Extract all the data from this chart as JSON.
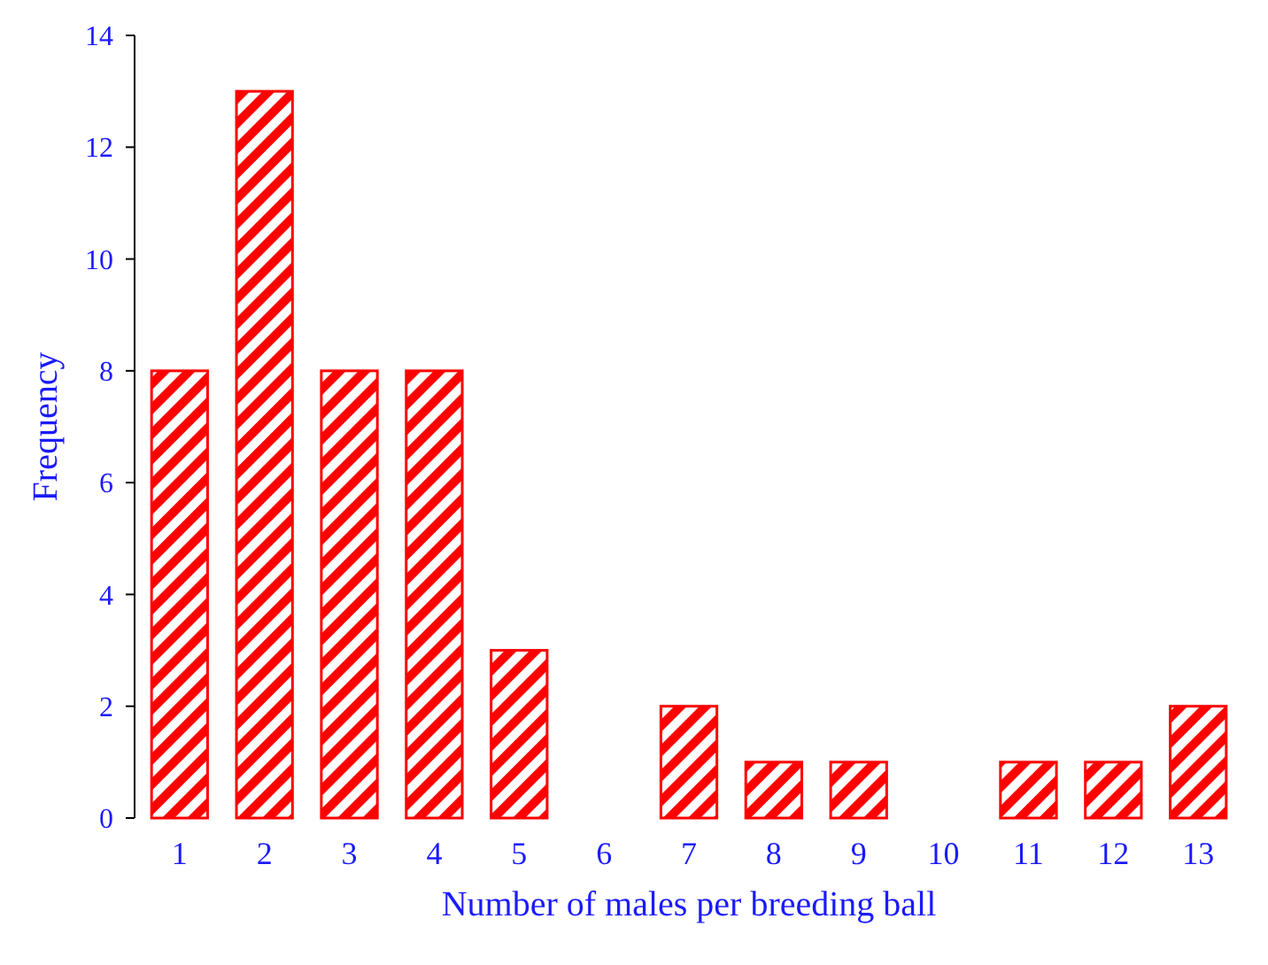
{
  "chart_data": {
    "type": "bar",
    "xlabel": "Number of males per breeding ball",
    "ylabel": "Frequency",
    "categories": [
      "1",
      "2",
      "3",
      "4",
      "5",
      "6",
      "7",
      "8",
      "9",
      "10",
      "11",
      "12",
      "13"
    ],
    "series": [
      {
        "color": "#ff0000",
        "values": [
          8,
          13,
          8,
          8,
          3,
          0,
          2,
          1,
          1,
          0,
          1,
          1,
          2
        ]
      }
    ],
    "ylim": [
      0,
      14
    ],
    "yticks": [
      0,
      2,
      4,
      6,
      8,
      10,
      12,
      14
    ],
    "grid": false
  }
}
